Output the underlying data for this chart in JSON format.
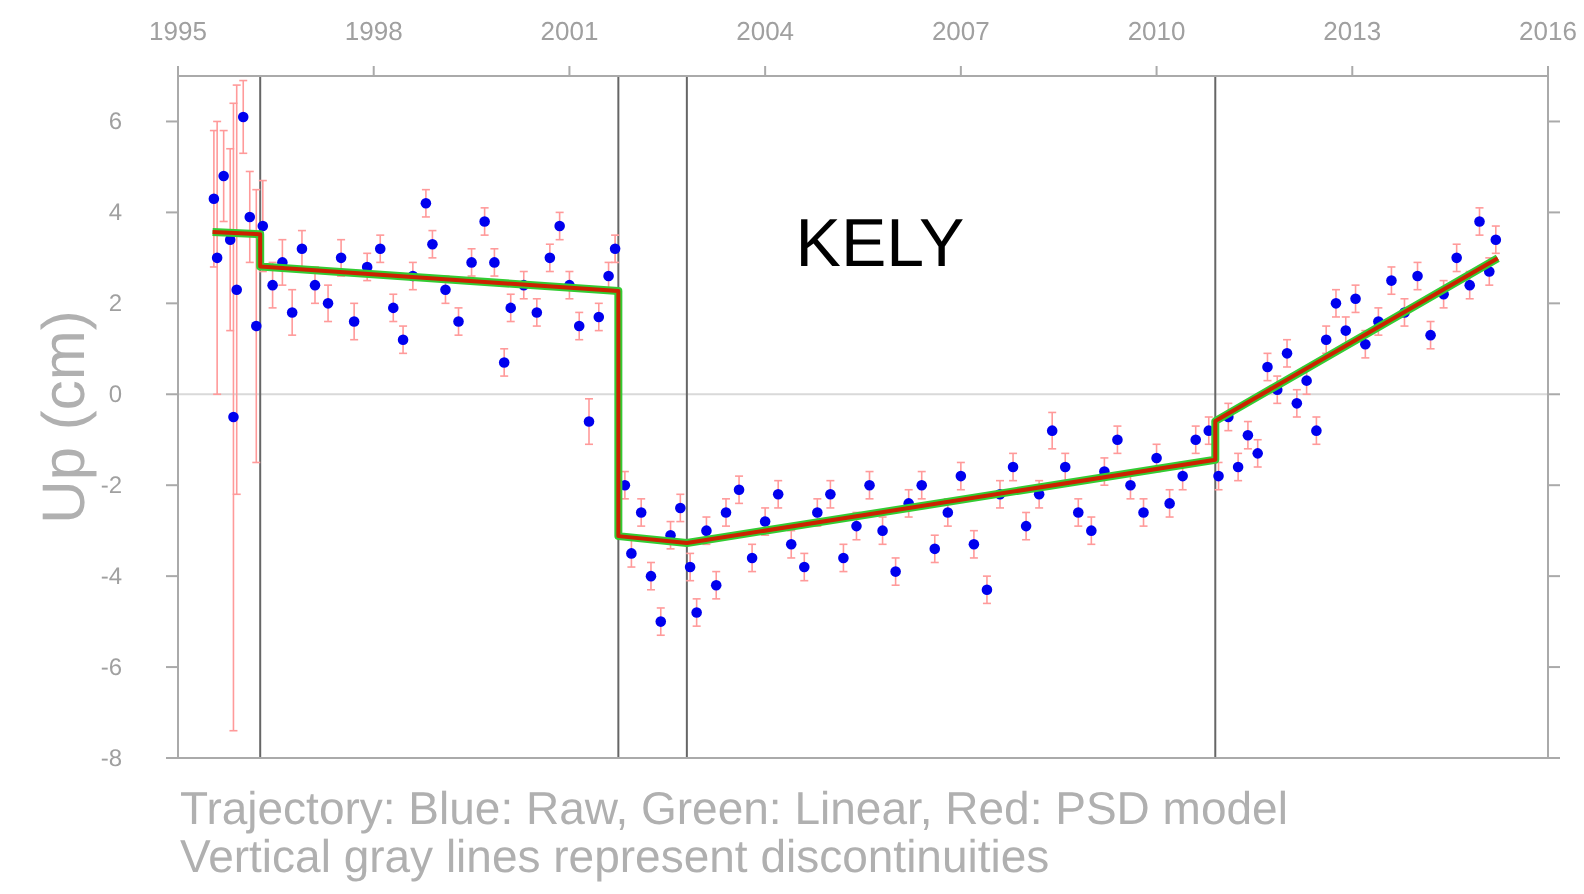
{
  "chart_data": {
    "type": "scatter",
    "title": "KELY",
    "ylabel": "Up (cm)",
    "annotations": [
      "Trajectory: Blue: Raw, Green: Linear, Red: PSD model",
      "Vertical gray lines represent discontinuities"
    ],
    "xlim": [
      1995,
      2016
    ],
    "xticks": [
      1995,
      1998,
      2001,
      2004,
      2007,
      2010,
      2013,
      2016
    ],
    "ylim": [
      -8,
      7
    ],
    "yticks": [
      -8,
      -6,
      -4,
      -2,
      0,
      2,
      4,
      6
    ],
    "marker": "circle",
    "ref_lines": [
      {
        "axis": "y",
        "value": 0,
        "color": "#d9d9d9"
      },
      {
        "axis": "x",
        "value": 1996.26,
        "color": "#666666"
      },
      {
        "axis": "x",
        "value": 2001.75,
        "color": "#666666"
      },
      {
        "axis": "x",
        "value": 2002.8,
        "color": "#666666"
      },
      {
        "axis": "x",
        "value": 2010.9,
        "color": "#666666"
      }
    ],
    "series": [
      {
        "color": "#0000ee",
        "x": [
          1995.55,
          1995.6,
          1995.7,
          1995.8,
          1995.85,
          1995.9,
          1996.0,
          1996.1,
          1996.2,
          1996.3,
          1996.45,
          1996.6,
          1996.75,
          1996.9,
          1997.1,
          1997.3,
          1997.5,
          1997.7,
          1997.9,
          1998.1,
          1998.3,
          1998.45,
          1998.6,
          1998.8,
          1998.9,
          1999.1,
          1999.3,
          1999.5,
          1999.7,
          1999.85,
          2000.0,
          2000.1,
          2000.3,
          2000.5,
          2000.7,
          2000.85,
          2001.0,
          2001.15,
          2001.3,
          2001.45,
          2001.6,
          2001.7,
          2001.85,
          2001.95,
          2002.1,
          2002.25,
          2002.4,
          2002.55,
          2002.7,
          2002.85,
          2002.95,
          2003.1,
          2003.25,
          2003.4,
          2003.6,
          2003.8,
          2004.0,
          2004.2,
          2004.4,
          2004.6,
          2004.8,
          2005.0,
          2005.2,
          2005.4,
          2005.6,
          2005.8,
          2006.0,
          2006.2,
          2006.4,
          2006.6,
          2006.8,
          2007.0,
          2007.2,
          2007.4,
          2007.6,
          2007.8,
          2008.0,
          2008.2,
          2008.4,
          2008.6,
          2008.8,
          2009.0,
          2009.2,
          2009.4,
          2009.6,
          2009.8,
          2010.0,
          2010.2,
          2010.4,
          2010.6,
          2010.8,
          2010.95,
          2011.1,
          2011.25,
          2011.4,
          2011.55,
          2011.7,
          2011.85,
          2012.0,
          2012.15,
          2012.3,
          2012.45,
          2012.6,
          2012.75,
          2012.9,
          2013.05,
          2013.2,
          2013.4,
          2013.6,
          2013.8,
          2014.0,
          2014.2,
          2014.4,
          2014.6,
          2014.8,
          2014.95,
          2015.1,
          2015.2
        ],
        "values": [
          4.3,
          3.0,
          4.8,
          3.4,
          -0.5,
          2.3,
          6.1,
          3.9,
          1.5,
          3.7,
          2.4,
          2.9,
          1.8,
          3.2,
          2.4,
          2.0,
          3.0,
          1.6,
          2.8,
          3.2,
          1.9,
          1.2,
          2.6,
          4.2,
          3.3,
          2.3,
          1.6,
          2.9,
          3.8,
          2.9,
          0.7,
          1.9,
          2.4,
          1.8,
          3.0,
          3.7,
          2.4,
          1.5,
          -0.6,
          1.7,
          2.6,
          3.2,
          -2.0,
          -3.5,
          -2.6,
          -4.0,
          -5.0,
          -3.1,
          -2.5,
          -3.8,
          -4.8,
          -3.0,
          -4.2,
          -2.6,
          -2.1,
          -3.6,
          -2.8,
          -2.2,
          -3.3,
          -3.8,
          -2.6,
          -2.2,
          -3.6,
          -2.9,
          -2.0,
          -3.0,
          -3.9,
          -2.4,
          -2.0,
          -3.4,
          -2.6,
          -1.8,
          -3.3,
          -4.3,
          -2.2,
          -1.6,
          -2.9,
          -2.2,
          -0.8,
          -1.6,
          -2.6,
          -3.0,
          -1.7,
          -1.0,
          -2.0,
          -2.6,
          -1.4,
          -2.4,
          -1.8,
          -1.0,
          -0.8,
          -1.8,
          -0.5,
          -1.6,
          -0.9,
          -1.3,
          0.6,
          0.1,
          0.9,
          -0.2,
          0.3,
          -0.8,
          1.2,
          2.0,
          1.4,
          2.1,
          1.1,
          1.6,
          2.5,
          1.8,
          2.6,
          1.3,
          2.2,
          3.0,
          2.4,
          3.8,
          2.7,
          3.4
        ],
        "errors": [
          1.5,
          3,
          1,
          2,
          6.9,
          4.5,
          0.8,
          1,
          3,
          1,
          0.5,
          0.5,
          0.5,
          0.4,
          0.4,
          0.4,
          0.4,
          0.4,
          0.3,
          0.3,
          0.3,
          0.3,
          0.3,
          0.3,
          0.3,
          0.3,
          0.3,
          0.3,
          0.3,
          0.3,
          0.3,
          0.3,
          0.3,
          0.3,
          0.3,
          0.3,
          0.3,
          0.3,
          0.5,
          0.3,
          0.3,
          0.3,
          0.3,
          0.3,
          0.3,
          0.3,
          0.3,
          0.3,
          0.3,
          0.3,
          0.3,
          0.3,
          0.3,
          0.3,
          0.3,
          0.3,
          0.3,
          0.3,
          0.3,
          0.3,
          0.3,
          0.3,
          0.3,
          0.3,
          0.3,
          0.3,
          0.3,
          0.3,
          0.3,
          0.3,
          0.3,
          0.3,
          0.3,
          0.3,
          0.3,
          0.3,
          0.3,
          0.3,
          0.4,
          0.3,
          0.3,
          0.3,
          0.3,
          0.3,
          0.3,
          0.3,
          0.3,
          0.3,
          0.3,
          0.3,
          0.3,
          0.3,
          0.3,
          0.3,
          0.3,
          0.3,
          0.3,
          0.3,
          0.3,
          0.3,
          0.3,
          0.3,
          0.3,
          0.3,
          0.3,
          0.3,
          0.3,
          0.3,
          0.3,
          0.3,
          0.3,
          0.3,
          0.3,
          0.3,
          0.3,
          0.3,
          0.3,
          0.3
        ]
      },
      {
        "type": "line",
        "marker": "none",
        "color": "#33cc33",
        "x": [
          1995.53,
          1996.26,
          1996.26,
          2001.75,
          2001.75,
          2002.8,
          2010.9,
          2010.9,
          2015.23
        ],
        "values": [
          3.57,
          3.52,
          2.81,
          2.27,
          -3.12,
          -3.27,
          -1.44,
          -0.59,
          2.99
        ]
      },
      {
        "type": "line",
        "marker": "none",
        "color": "#cc2200",
        "x": [
          1995.53,
          1996.26,
          1996.26,
          2001.75,
          2001.75,
          2002.8,
          2010.9,
          2010.9,
          2015.23
        ],
        "values": [
          3.57,
          3.52,
          2.81,
          2.27,
          -3.12,
          -3.27,
          -1.44,
          -0.59,
          2.99
        ]
      }
    ]
  }
}
